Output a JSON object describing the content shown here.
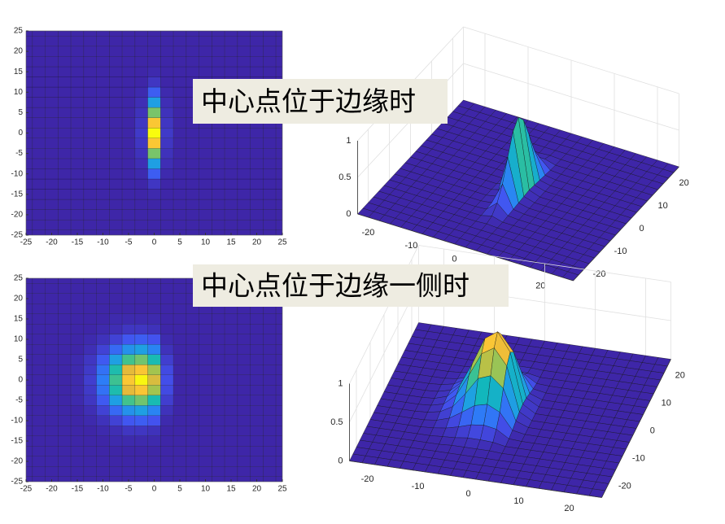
{
  "chart_data": [
    {
      "type": "heatmap",
      "title": "中心点位于边缘时",
      "surface": true,
      "colormap": [
        "#3e26a8",
        "#4352f0",
        "#2d7ef7",
        "#1da3e0",
        "#11b9b9",
        "#4ac486",
        "#a9c44c",
        "#e8b93a",
        "#fcc834",
        "#f9fb0e"
      ],
      "xlim": [
        -25,
        25
      ],
      "ylim": [
        -25,
        25
      ],
      "zlim": [
        0,
        1
      ],
      "xticks": [
        -25,
        -20,
        -15,
        -10,
        -5,
        0,
        5,
        10,
        15,
        20,
        25
      ],
      "yticks": [
        -25,
        -20,
        -15,
        -10,
        -5,
        0,
        5,
        10,
        15,
        20,
        25
      ],
      "surface_xticks": [
        -20,
        -10,
        0,
        10,
        20
      ],
      "surface_yticks": [
        -20,
        -10,
        0,
        10,
        20
      ],
      "zticks": [
        0,
        0.5,
        1
      ],
      "x": [
        -25,
        -22.5,
        -20,
        -17.5,
        -15,
        -12.5,
        -10,
        -7.5,
        -5,
        -2.5,
        0,
        2.5,
        5,
        7.5,
        10,
        12.5,
        15,
        17.5,
        20,
        22.5,
        25
      ],
      "y": [
        -25,
        -22.5,
        -20,
        -17.5,
        -15,
        -12.5,
        -10,
        -7.5,
        -5,
        -2.5,
        0,
        2.5,
        5,
        7.5,
        10,
        12.5,
        15,
        17.5,
        20,
        22.5,
        25
      ],
      "z": [
        [
          0,
          0,
          0,
          0,
          0,
          0,
          0,
          0,
          0,
          0,
          0,
          0,
          0,
          0,
          0,
          0,
          0,
          0,
          0,
          0,
          0
        ],
        [
          0,
          0,
          0,
          0,
          0,
          0,
          0,
          0,
          0,
          0,
          0,
          0,
          0,
          0,
          0,
          0,
          0,
          0,
          0,
          0,
          0
        ],
        [
          0,
          0,
          0,
          0,
          0,
          0,
          0,
          0,
          0,
          0,
          0,
          0,
          0,
          0,
          0,
          0,
          0,
          0,
          0,
          0,
          0
        ],
        [
          0,
          0,
          0,
          0,
          0,
          0,
          0,
          0,
          0,
          0,
          0,
          0,
          0,
          0,
          0,
          0,
          0,
          0,
          0,
          0,
          0
        ],
        [
          0,
          0,
          0,
          0,
          0,
          0,
          0,
          0,
          0,
          0,
          0.01,
          0,
          0,
          0,
          0,
          0,
          0,
          0,
          0,
          0,
          0
        ],
        [
          0,
          0,
          0,
          0,
          0,
          0,
          0,
          0,
          0,
          0,
          0.04,
          0,
          0,
          0,
          0,
          0,
          0,
          0,
          0,
          0,
          0
        ],
        [
          0,
          0,
          0,
          0,
          0,
          0,
          0,
          0,
          0,
          0.01,
          0.14,
          0.01,
          0,
          0,
          0,
          0,
          0,
          0,
          0,
          0,
          0
        ],
        [
          0,
          0,
          0,
          0,
          0,
          0,
          0,
          0,
          0,
          0.02,
          0.32,
          0.02,
          0,
          0,
          0,
          0,
          0,
          0,
          0,
          0,
          0
        ],
        [
          0,
          0,
          0,
          0,
          0,
          0,
          0,
          0,
          0,
          0.03,
          0.61,
          0.03,
          0,
          0,
          0,
          0,
          0,
          0,
          0,
          0,
          0
        ],
        [
          0,
          0,
          0,
          0,
          0,
          0,
          0,
          0,
          0,
          0.04,
          0.88,
          0.04,
          0,
          0,
          0,
          0,
          0,
          0,
          0,
          0,
          0
        ],
        [
          0,
          0,
          0,
          0,
          0,
          0,
          0,
          0,
          0,
          0.05,
          1,
          0.05,
          0,
          0,
          0,
          0,
          0,
          0,
          0,
          0,
          0
        ],
        [
          0,
          0,
          0,
          0,
          0,
          0,
          0,
          0,
          0,
          0.04,
          0.88,
          0.04,
          0,
          0,
          0,
          0,
          0,
          0,
          0,
          0,
          0
        ],
        [
          0,
          0,
          0,
          0,
          0,
          0,
          0,
          0,
          0,
          0.03,
          0.61,
          0.03,
          0,
          0,
          0,
          0,
          0,
          0,
          0,
          0,
          0
        ],
        [
          0,
          0,
          0,
          0,
          0,
          0,
          0,
          0,
          0,
          0.02,
          0.32,
          0.02,
          0,
          0,
          0,
          0,
          0,
          0,
          0,
          0,
          0
        ],
        [
          0,
          0,
          0,
          0,
          0,
          0,
          0,
          0,
          0,
          0.01,
          0.14,
          0.01,
          0,
          0,
          0,
          0,
          0,
          0,
          0,
          0,
          0
        ],
        [
          0,
          0,
          0,
          0,
          0,
          0,
          0,
          0,
          0,
          0,
          0.04,
          0,
          0,
          0,
          0,
          0,
          0,
          0,
          0,
          0,
          0
        ],
        [
          0,
          0,
          0,
          0,
          0,
          0,
          0,
          0,
          0,
          0,
          0.01,
          0,
          0,
          0,
          0,
          0,
          0,
          0,
          0,
          0,
          0
        ],
        [
          0,
          0,
          0,
          0,
          0,
          0,
          0,
          0,
          0,
          0,
          0,
          0,
          0,
          0,
          0,
          0,
          0,
          0,
          0,
          0,
          0
        ],
        [
          0,
          0,
          0,
          0,
          0,
          0,
          0,
          0,
          0,
          0,
          0,
          0,
          0,
          0,
          0,
          0,
          0,
          0,
          0,
          0,
          0
        ],
        [
          0,
          0,
          0,
          0,
          0,
          0,
          0,
          0,
          0,
          0,
          0,
          0,
          0,
          0,
          0,
          0,
          0,
          0,
          0,
          0,
          0
        ],
        [
          0,
          0,
          0,
          0,
          0,
          0,
          0,
          0,
          0,
          0,
          0,
          0,
          0,
          0,
          0,
          0,
          0,
          0,
          0,
          0,
          0
        ]
      ]
    },
    {
      "type": "heatmap",
      "title": "中心点位于边缘一侧时",
      "surface": true,
      "colormap": [
        "#3e26a8",
        "#4352f0",
        "#2d7ef7",
        "#1da3e0",
        "#11b9b9",
        "#4ac486",
        "#a9c44c",
        "#e8b93a",
        "#fcc834",
        "#f9fb0e"
      ],
      "xlim": [
        -25,
        25
      ],
      "ylim": [
        -25,
        25
      ],
      "zlim": [
        0,
        1
      ],
      "xticks": [
        -25,
        -20,
        -15,
        -10,
        -5,
        0,
        5,
        10,
        15,
        20,
        25
      ],
      "yticks": [
        -25,
        -20,
        -15,
        -10,
        -5,
        0,
        5,
        10,
        15,
        20,
        25
      ],
      "surface_xticks": [
        -20,
        -10,
        0,
        10,
        20
      ],
      "surface_yticks": [
        -20,
        -10,
        0,
        10,
        20
      ],
      "zticks": [
        0,
        0.5,
        1
      ],
      "x": [
        -25,
        -22.5,
        -20,
        -17.5,
        -15,
        -12.5,
        -10,
        -7.5,
        -5,
        -2.5,
        0,
        2.5,
        5,
        7.5,
        10,
        12.5,
        15,
        17.5,
        20,
        22.5,
        25
      ],
      "y": [
        -25,
        -22.5,
        -20,
        -17.5,
        -15,
        -12.5,
        -10,
        -7.5,
        -5,
        -2.5,
        0,
        2.5,
        5,
        7.5,
        10,
        12.5,
        15,
        17.5,
        20,
        22.5,
        25
      ],
      "z": [
        [
          0,
          0,
          0,
          0,
          0,
          0,
          0,
          0,
          0,
          0,
          0,
          0,
          0,
          0,
          0,
          0,
          0,
          0,
          0,
          0,
          0
        ],
        [
          0,
          0,
          0,
          0,
          0,
          0,
          0,
          0,
          0,
          0,
          0,
          0,
          0,
          0,
          0,
          0,
          0,
          0,
          0,
          0,
          0
        ],
        [
          0,
          0,
          0,
          0,
          0,
          0,
          0,
          0,
          0,
          0,
          0,
          0,
          0,
          0,
          0,
          0,
          0,
          0,
          0,
          0,
          0
        ],
        [
          0,
          0,
          0,
          0,
          0,
          0,
          0,
          0,
          0,
          0,
          0,
          0,
          0,
          0,
          0,
          0,
          0,
          0,
          0,
          0,
          0
        ],
        [
          0,
          0,
          0,
          0,
          0,
          0,
          0,
          0.01,
          0.01,
          0.01,
          0.01,
          0,
          0,
          0,
          0,
          0,
          0,
          0,
          0,
          0,
          0
        ],
        [
          0,
          0,
          0,
          0,
          0,
          0,
          0.01,
          0.02,
          0.04,
          0.04,
          0.03,
          0,
          0,
          0,
          0,
          0,
          0,
          0,
          0,
          0,
          0
        ],
        [
          0,
          0,
          0,
          0,
          0,
          0.01,
          0.03,
          0.07,
          0.12,
          0.14,
          0.11,
          0.01,
          0,
          0,
          0,
          0,
          0,
          0,
          0,
          0,
          0
        ],
        [
          0,
          0,
          0,
          0,
          0,
          0.02,
          0.07,
          0.17,
          0.28,
          0.32,
          0.24,
          0.03,
          0,
          0,
          0,
          0,
          0,
          0,
          0,
          0,
          0
        ],
        [
          0,
          0,
          0,
          0,
          0.01,
          0.04,
          0.13,
          0.32,
          0.54,
          0.6,
          0.46,
          0.06,
          0,
          0,
          0,
          0,
          0,
          0,
          0,
          0,
          0
        ],
        [
          0,
          0,
          0,
          0,
          0.01,
          0.05,
          0.19,
          0.47,
          0.77,
          0.87,
          0.66,
          0.09,
          0,
          0,
          0,
          0,
          0,
          0,
          0,
          0,
          0
        ],
        [
          0,
          0,
          0,
          0,
          0.01,
          0.06,
          0.22,
          0.53,
          0.88,
          0.99,
          0.75,
          0.1,
          0,
          0,
          0,
          0,
          0,
          0,
          0,
          0,
          0
        ],
        [
          0,
          0,
          0,
          0,
          0.01,
          0.05,
          0.19,
          0.47,
          0.77,
          0.87,
          0.66,
          0.09,
          0,
          0,
          0,
          0,
          0,
          0,
          0,
          0,
          0
        ],
        [
          0,
          0,
          0,
          0,
          0.01,
          0.04,
          0.13,
          0.32,
          0.54,
          0.6,
          0.46,
          0.06,
          0,
          0,
          0,
          0,
          0,
          0,
          0,
          0,
          0
        ],
        [
          0,
          0,
          0,
          0,
          0,
          0.02,
          0.07,
          0.17,
          0.28,
          0.32,
          0.24,
          0.03,
          0,
          0,
          0,
          0,
          0,
          0,
          0,
          0,
          0
        ],
        [
          0,
          0,
          0,
          0,
          0,
          0.01,
          0.03,
          0.07,
          0.12,
          0.14,
          0.11,
          0.01,
          0,
          0,
          0,
          0,
          0,
          0,
          0,
          0,
          0
        ],
        [
          0,
          0,
          0,
          0,
          0,
          0,
          0.01,
          0.02,
          0.04,
          0.04,
          0.03,
          0,
          0,
          0,
          0,
          0,
          0,
          0,
          0,
          0,
          0
        ],
        [
          0,
          0,
          0,
          0,
          0,
          0,
          0,
          0.01,
          0.01,
          0.01,
          0.01,
          0,
          0,
          0,
          0,
          0,
          0,
          0,
          0,
          0,
          0
        ],
        [
          0,
          0,
          0,
          0,
          0,
          0,
          0,
          0,
          0,
          0,
          0,
          0,
          0,
          0,
          0,
          0,
          0,
          0,
          0,
          0,
          0
        ],
        [
          0,
          0,
          0,
          0,
          0,
          0,
          0,
          0,
          0,
          0,
          0,
          0,
          0,
          0,
          0,
          0,
          0,
          0,
          0,
          0,
          0
        ],
        [
          0,
          0,
          0,
          0,
          0,
          0,
          0,
          0,
          0,
          0,
          0,
          0,
          0,
          0,
          0,
          0,
          0,
          0,
          0,
          0,
          0
        ],
        [
          0,
          0,
          0,
          0,
          0,
          0,
          0,
          0,
          0,
          0,
          0,
          0,
          0,
          0,
          0,
          0,
          0,
          0,
          0,
          0,
          0
        ]
      ]
    }
  ]
}
